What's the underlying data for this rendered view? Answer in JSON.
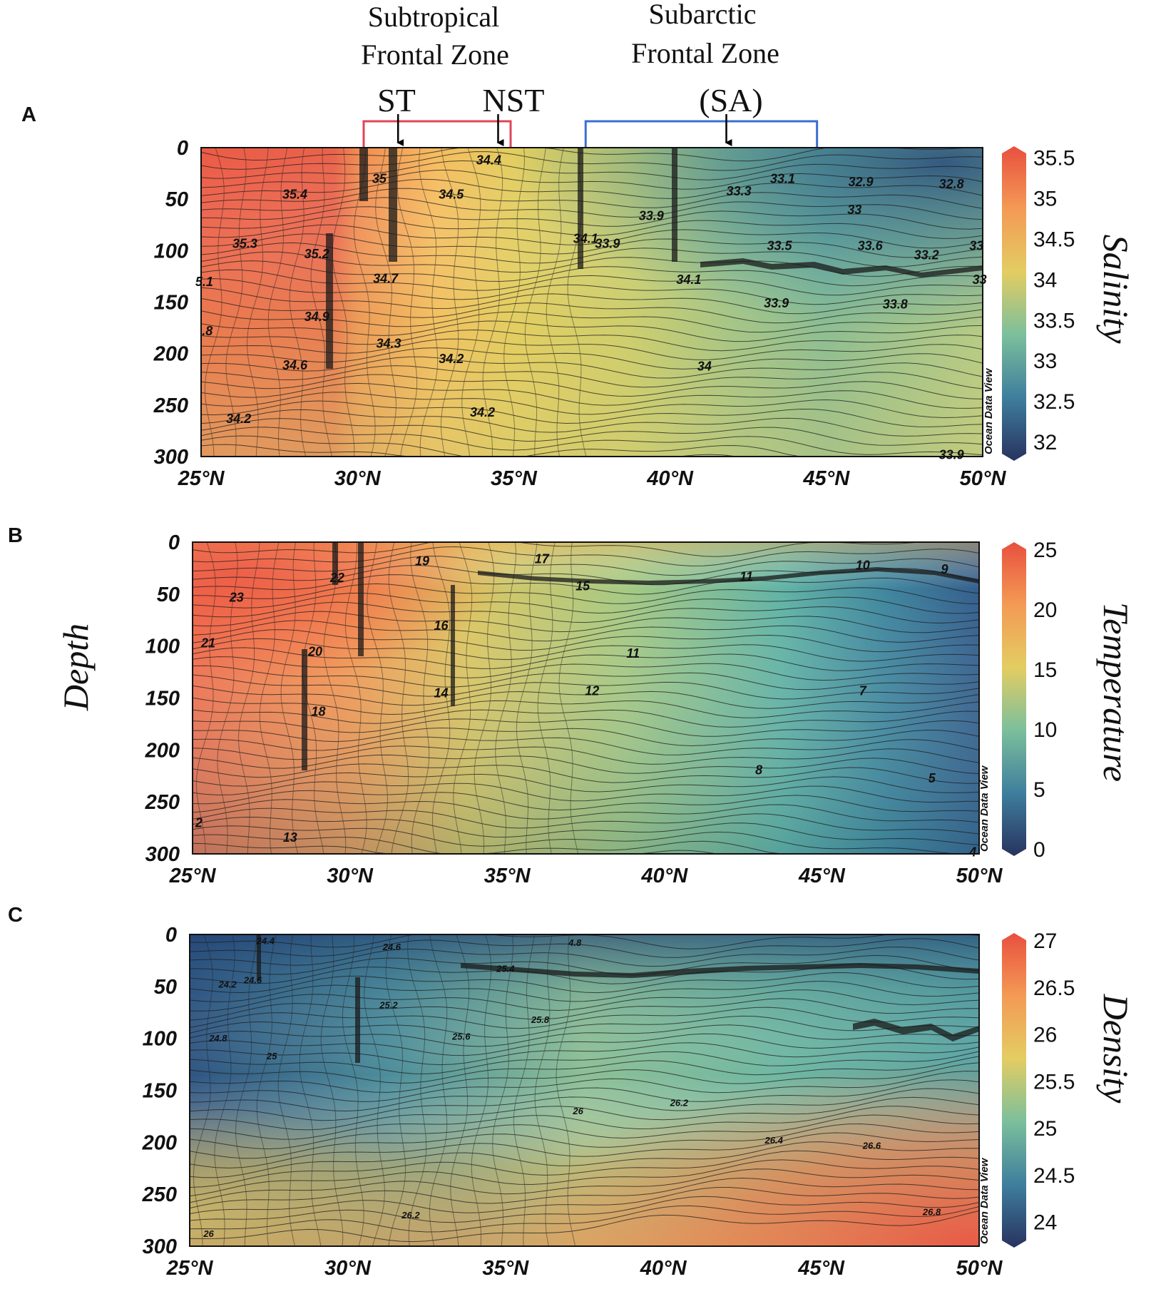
{
  "figure": {
    "y_axis_label": "Depth",
    "top_annotations": {
      "subtropical_label_line1": "Subtropical",
      "subtropical_label_line2": "Frontal Zone",
      "subarctic_label_line1": "Subarctic",
      "subarctic_label_line2": "Frontal Zone",
      "st": "ST",
      "nst": "NST",
      "sa": "(SA)",
      "subtropical_bracket_range_lat": [
        30.2,
        34.9
      ],
      "subarctic_bracket_range_lat": [
        37.3,
        44.7
      ],
      "arrows_lat": {
        "st": 31.3,
        "nst": 34.5,
        "sa": 41.8
      },
      "subtropical_color": "#e04656",
      "subarctic_color": "#3a6fd0"
    }
  },
  "chart_data": [
    {
      "type": "heatmap",
      "panel_letter": "A",
      "variable_label": "Salinity",
      "watermark": "Ocean Data View",
      "x_ticks": [
        "25°N",
        "30°N",
        "35°N",
        "40°N",
        "45°N",
        "50°N"
      ],
      "x_tick_values": [
        25,
        30,
        35,
        40,
        45,
        50
      ],
      "xlim": [
        25,
        50
      ],
      "y_ticks": [
        "0",
        "50",
        "100",
        "150",
        "200",
        "250",
        "300"
      ],
      "y_tick_values": [
        0,
        50,
        100,
        150,
        200,
        250,
        300
      ],
      "ylim": [
        0,
        300
      ],
      "colorbar_ticks": [
        "35.5",
        "35",
        "34.5",
        "34",
        "33.5",
        "33",
        "32.5",
        "32"
      ],
      "colorbar_tick_values": [
        35.5,
        35,
        34.5,
        34,
        33.5,
        33,
        32.5,
        32
      ],
      "colorbar_range": [
        31.85,
        35.55
      ],
      "contour_labels": [
        {
          "text": "34.4",
          "lat": 34.2,
          "depth": 12
        },
        {
          "text": "35",
          "lat": 30.7,
          "depth": 30
        },
        {
          "text": "35.4",
          "lat": 28.0,
          "depth": 45
        },
        {
          "text": "34.5",
          "lat": 33.0,
          "depth": 45
        },
        {
          "text": "33.3",
          "lat": 42.2,
          "depth": 42
        },
        {
          "text": "33.1",
          "lat": 43.6,
          "depth": 30
        },
        {
          "text": "32.9",
          "lat": 46.1,
          "depth": 33
        },
        {
          "text": "32.8",
          "lat": 49.0,
          "depth": 35
        },
        {
          "text": "33.9",
          "lat": 39.4,
          "depth": 66
        },
        {
          "text": "33",
          "lat": 45.9,
          "depth": 60
        },
        {
          "text": "35.3",
          "lat": 26.4,
          "depth": 93
        },
        {
          "text": "35.2",
          "lat": 28.7,
          "depth": 103
        },
        {
          "text": "34.1",
          "lat": 37.3,
          "depth": 88
        },
        {
          "text": "33.9",
          "lat": 38.0,
          "depth": 93
        },
        {
          "text": "33.5",
          "lat": 43.5,
          "depth": 95
        },
        {
          "text": "33.6",
          "lat": 46.4,
          "depth": 95
        },
        {
          "text": "33.2",
          "lat": 48.2,
          "depth": 104
        },
        {
          "text": "33",
          "lat": 49.8,
          "depth": 95
        },
        {
          "text": "5.1",
          "lat": 25.1,
          "depth": 130
        },
        {
          "text": "34.7",
          "lat": 30.9,
          "depth": 127
        },
        {
          "text": "34.1",
          "lat": 40.6,
          "depth": 128
        },
        {
          "text": "33",
          "lat": 49.9,
          "depth": 128
        },
        {
          "text": "34.9",
          "lat": 28.7,
          "depth": 164
        },
        {
          "text": "33.9",
          "lat": 43.4,
          "depth": 151
        },
        {
          "text": "33.8",
          "lat": 47.2,
          "depth": 152
        },
        {
          "text": ".8",
          "lat": 25.2,
          "depth": 178
        },
        {
          "text": "34.3",
          "lat": 31.0,
          "depth": 190
        },
        {
          "text": "34.2",
          "lat": 33.0,
          "depth": 205
        },
        {
          "text": "34.6",
          "lat": 28.0,
          "depth": 211
        },
        {
          "text": "34",
          "lat": 41.1,
          "depth": 212
        },
        {
          "text": "34.2",
          "lat": 34.0,
          "depth": 257
        },
        {
          "text": "34.2",
          "lat": 26.2,
          "depth": 263
        },
        {
          "text": "33.9",
          "lat": 49.0,
          "depth": 298
        }
      ]
    },
    {
      "type": "heatmap",
      "panel_letter": "B",
      "variable_label": "Temperature",
      "watermark": "Ocean Data View",
      "x_ticks": [
        "25°N",
        "30°N",
        "35°N",
        "40°N",
        "45°N",
        "50°N"
      ],
      "x_tick_values": [
        25,
        30,
        35,
        40,
        45,
        50
      ],
      "xlim": [
        25,
        50
      ],
      "y_ticks": [
        "0",
        "50",
        "100",
        "150",
        "200",
        "250",
        "300"
      ],
      "y_tick_values": [
        0,
        50,
        100,
        150,
        200,
        250,
        300
      ],
      "ylim": [
        0,
        300
      ],
      "colorbar_ticks": [
        "25",
        "20",
        "15",
        "10",
        "5",
        "0"
      ],
      "colorbar_tick_values": [
        25,
        20,
        15,
        10,
        5,
        0
      ],
      "colorbar_range": [
        0,
        25
      ],
      "contour_labels": [
        {
          "text": "19",
          "lat": 32.3,
          "depth": 18
        },
        {
          "text": "17",
          "lat": 36.1,
          "depth": 16
        },
        {
          "text": "10",
          "lat": 46.3,
          "depth": 22
        },
        {
          "text": "9",
          "lat": 48.9,
          "depth": 26
        },
        {
          "text": "22",
          "lat": 29.6,
          "depth": 34
        },
        {
          "text": "11",
          "lat": 42.6,
          "depth": 33
        },
        {
          "text": "15",
          "lat": 37.4,
          "depth": 42
        },
        {
          "text": "23",
          "lat": 26.4,
          "depth": 53
        },
        {
          "text": "16",
          "lat": 32.9,
          "depth": 80
        },
        {
          "text": "21",
          "lat": 25.5,
          "depth": 97
        },
        {
          "text": "20",
          "lat": 28.9,
          "depth": 105
        },
        {
          "text": "11",
          "lat": 39.0,
          "depth": 107
        },
        {
          "text": "14",
          "lat": 32.9,
          "depth": 145
        },
        {
          "text": "12",
          "lat": 37.7,
          "depth": 143
        },
        {
          "text": "7",
          "lat": 46.3,
          "depth": 143
        },
        {
          "text": "18",
          "lat": 29.0,
          "depth": 163
        },
        {
          "text": "8",
          "lat": 43.0,
          "depth": 219
        },
        {
          "text": "5",
          "lat": 48.5,
          "depth": 227
        },
        {
          "text": "2",
          "lat": 25.2,
          "depth": 270
        },
        {
          "text": "13",
          "lat": 28.1,
          "depth": 284
        },
        {
          "text": "4",
          "lat": 49.8,
          "depth": 298
        }
      ]
    },
    {
      "type": "heatmap",
      "panel_letter": "C",
      "variable_label": "Density",
      "watermark": "Ocean Data View",
      "x_ticks": [
        "25°N",
        "30°N",
        "35°N",
        "40°N",
        "45°N",
        "50°N"
      ],
      "x_tick_values": [
        25,
        30,
        35,
        40,
        45,
        50
      ],
      "xlim": [
        25,
        50
      ],
      "y_ticks": [
        "0",
        "50",
        "100",
        "150",
        "200",
        "250",
        "300"
      ],
      "y_tick_values": [
        0,
        50,
        100,
        150,
        200,
        250,
        300
      ],
      "ylim": [
        0,
        300
      ],
      "colorbar_ticks": [
        "27",
        "26.5",
        "26",
        "25.5",
        "25",
        "24.5",
        "24"
      ],
      "colorbar_tick_values": [
        27,
        26.5,
        26,
        25.5,
        25,
        24.5,
        24
      ],
      "colorbar_range": [
        23.8,
        27.0
      ],
      "contour_labels": [
        {
          "text": "24.4",
          "lat": 27.4,
          "depth": 6
        },
        {
          "text": "24.6",
          "lat": 31.4,
          "depth": 12
        },
        {
          "text": "4.8",
          "lat": 37.2,
          "depth": 8
        },
        {
          "text": "24.6",
          "lat": 27.0,
          "depth": 44
        },
        {
          "text": "24.2",
          "lat": 26.2,
          "depth": 48
        },
        {
          "text": "25.4",
          "lat": 35.0,
          "depth": 33
        },
        {
          "text": "25.2",
          "lat": 31.3,
          "depth": 68
        },
        {
          "text": "25.6",
          "lat": 33.6,
          "depth": 98
        },
        {
          "text": "25.8",
          "lat": 36.1,
          "depth": 82
        },
        {
          "text": "24.8",
          "lat": 25.9,
          "depth": 100
        },
        {
          "text": "25",
          "lat": 27.6,
          "depth": 117
        },
        {
          "text": "26.2",
          "lat": 40.5,
          "depth": 162
        },
        {
          "text": "26",
          "lat": 37.3,
          "depth": 170
        },
        {
          "text": "26.4",
          "lat": 43.5,
          "depth": 198
        },
        {
          "text": "26.6",
          "lat": 46.6,
          "depth": 203
        },
        {
          "text": "26.2",
          "lat": 32.0,
          "depth": 270
        },
        {
          "text": "26.8",
          "lat": 48.5,
          "depth": 267
        },
        {
          "text": "26",
          "lat": 25.6,
          "depth": 288
        }
      ]
    }
  ]
}
